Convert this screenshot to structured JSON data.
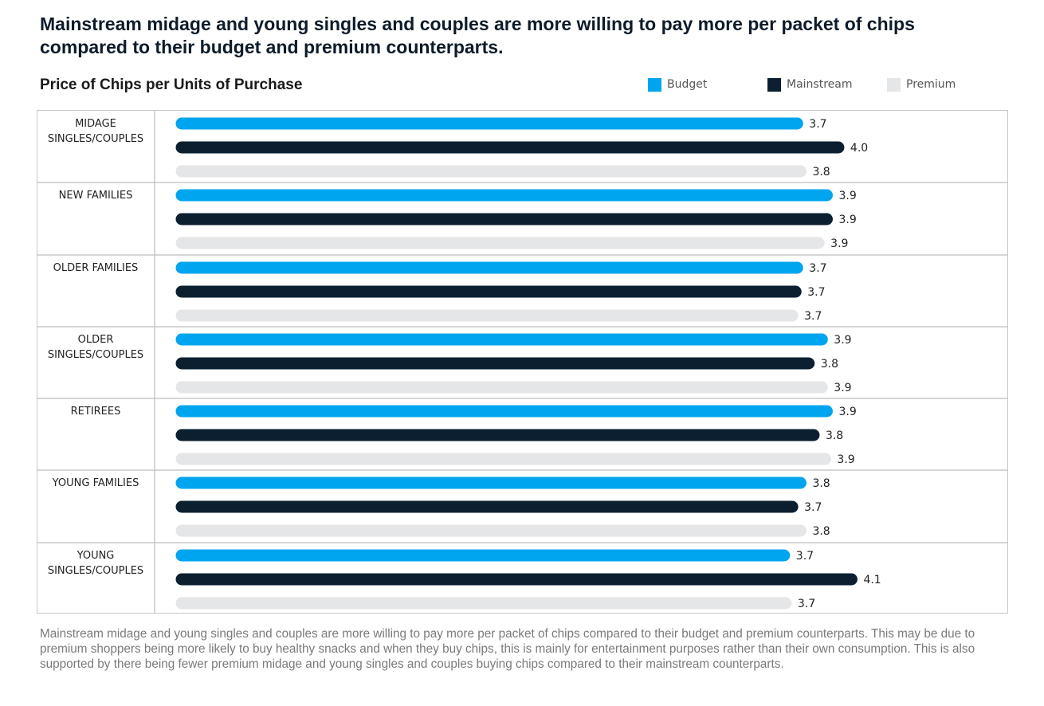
{
  "headline": "Mainstream midage and young singles and couples are more willing to pay more per packet of chips compared to their budget and premium counterparts.",
  "footnote": "Mainstream midage and young singles and couples are more willing to pay more per packet of chips compared to their budget and premium counterparts. This may be due to premium shoppers being more likely to buy healthy snacks and when they buy chips, this is mainly for entertainment purposes rather than their own consumption. This is also supported by there being fewer premium midage and young singles and couples buying chips compared to their mainstream counterparts.",
  "chart_data": {
    "type": "bar",
    "orientation": "horizontal",
    "title": "Price of Chips per Units of Purchase",
    "xlabel": "",
    "ylabel": "",
    "legend_position": "top-right",
    "grid": false,
    "categories": [
      [
        "MIDAGE",
        "SINGLES/COUPLES"
      ],
      [
        "NEW FAMILIES"
      ],
      [
        "OLDER FAMILIES"
      ],
      [
        "OLDER",
        "SINGLES/COUPLES"
      ],
      [
        "RETIREES"
      ],
      [
        "YOUNG FAMILIES"
      ],
      [
        "YOUNG",
        "SINGLES/COUPLES"
      ]
    ],
    "series": [
      {
        "name": "Budget",
        "color": "#00a5ef",
        "values": [
          3.74,
          3.92,
          3.74,
          3.89,
          3.92,
          3.76,
          3.66
        ],
        "labels": [
          "3.7",
          "3.9",
          "3.7",
          "3.9",
          "3.9",
          "3.8",
          "3.7"
        ]
      },
      {
        "name": "Mainstream",
        "color": "#0b1f30",
        "values": [
          3.99,
          3.92,
          3.73,
          3.81,
          3.84,
          3.71,
          4.07
        ],
        "labels": [
          "4.0",
          "3.9",
          "3.7",
          "3.8",
          "3.8",
          "3.7",
          "4.1"
        ]
      },
      {
        "name": "Premium",
        "color": "#e5e6e8",
        "values": [
          3.76,
          3.87,
          3.71,
          3.89,
          3.91,
          3.76,
          3.67
        ],
        "labels": [
          "3.8",
          "3.9",
          "3.7",
          "3.9",
          "3.9",
          "3.8",
          "3.7"
        ]
      }
    ]
  }
}
